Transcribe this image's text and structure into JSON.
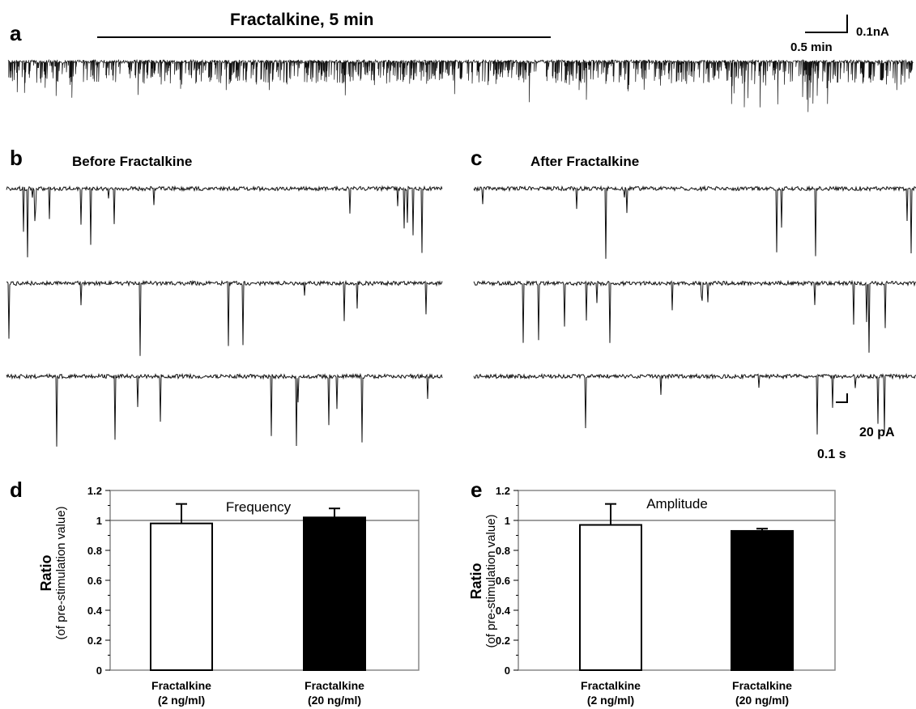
{
  "panel_a": {
    "letter": "a",
    "stimulus_label": "Fractalkine, 5  min",
    "scale_time": "0.5 min",
    "scale_current": "0.1nA"
  },
  "panel_b": {
    "letter": "b",
    "title": "Before Fractalkine"
  },
  "panel_c": {
    "letter": "c",
    "title": "After Fractalkine",
    "scale_current": "20 pA",
    "scale_time": "0.1 s"
  },
  "panel_d": {
    "letter": "d"
  },
  "panel_e": {
    "letter": "e"
  },
  "colors": {
    "trace": "#111111",
    "bar_fill_dark": "#000000",
    "bar_fill_light": "#ffffff",
    "frame": "#888888"
  },
  "chart_data": [
    {
      "type": "bar",
      "panel": "d",
      "title": "Frequency",
      "ylabel": "Ratio",
      "ylabel_sub": "(of pre-stimulation value)",
      "categories": [
        {
          "line1": "Fractalkine",
          "line2": "(2 ng/ml)"
        },
        {
          "line1": "Fractalkine",
          "line2": "(20 ng/ml)"
        }
      ],
      "values": [
        0.98,
        1.02
      ],
      "errors": [
        0.13,
        0.06
      ],
      "bar_colors": [
        "#ffffff",
        "#000000"
      ],
      "reference_line": 1.0,
      "ylim": [
        0,
        1.2
      ],
      "yticks": [
        "0",
        "0.2",
        "0.4",
        "0.6",
        "0.8",
        "1",
        "1.2"
      ]
    },
    {
      "type": "bar",
      "panel": "e",
      "title": "Amplitude",
      "ylabel": "Ratio",
      "ylabel_sub": "(of pre-stimulation value)",
      "categories": [
        {
          "line1": "Fractalkine",
          "line2": "(2 ng/ml)"
        },
        {
          "line1": "Fractalkine",
          "line2": "(20 ng/ml)"
        }
      ],
      "values": [
        0.97,
        0.93
      ],
      "errors": [
        0.14,
        0.015
      ],
      "bar_colors": [
        "#ffffff",
        "#000000"
      ],
      "reference_line": 1.0,
      "ylim": [
        0,
        1.2
      ],
      "yticks": [
        "0",
        "0.2",
        "0.4",
        "0.6",
        "0.8",
        "1",
        "1.2"
      ]
    }
  ]
}
